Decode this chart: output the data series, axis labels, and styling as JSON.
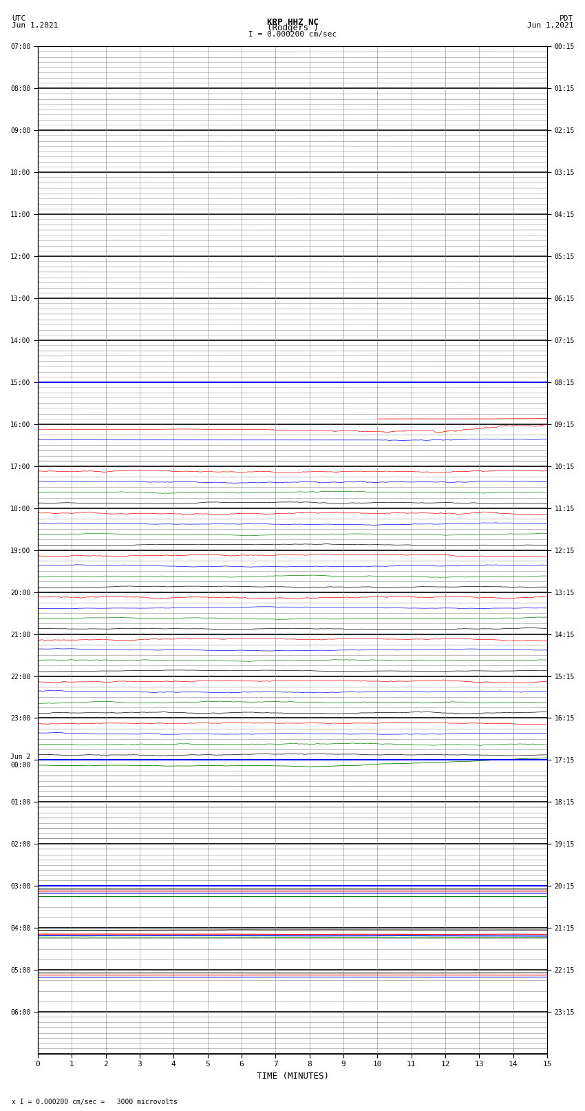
{
  "title_line1": "KRP HHZ NC",
  "title_line2": "(Rodgers )",
  "scale_label": "I = 0.000200 cm/sec",
  "left_header": "UTC\nJun 1,2021",
  "right_header": "PDT\nJun 1,2021",
  "bottom_label": "TIME (MINUTES)",
  "bottom_note": "x I = 0.000200 cm/sec =   3000 microvolts",
  "utc_labels": [
    "07:00",
    "08:00",
    "09:00",
    "10:00",
    "11:00",
    "12:00",
    "13:00",
    "14:00",
    "15:00",
    "16:00",
    "17:00",
    "18:00",
    "19:00",
    "20:00",
    "21:00",
    "22:00",
    "23:00",
    "Jun 2\n00:00",
    "01:00",
    "02:00",
    "03:00",
    "04:00",
    "05:00",
    "06:00"
  ],
  "pdt_labels": [
    "00:15",
    "01:15",
    "02:15",
    "03:15",
    "04:15",
    "05:15",
    "06:15",
    "07:15",
    "08:15",
    "09:15",
    "10:15",
    "11:15",
    "12:15",
    "13:15",
    "14:15",
    "15:15",
    "16:15",
    "17:15",
    "18:15",
    "19:15",
    "20:15",
    "21:15",
    "22:15",
    "23:15"
  ],
  "n_rows": 24,
  "n_subrows": 4,
  "minutes_per_row": 15,
  "colors": [
    "red",
    "blue",
    "green",
    "black"
  ],
  "bg_color": "#ffffff",
  "grid_color": "#888888",
  "major_grid_color": "#000000"
}
